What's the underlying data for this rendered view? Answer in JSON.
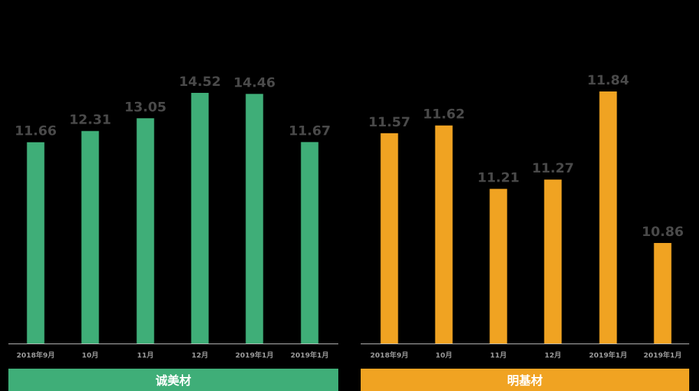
{
  "chart_data": [
    {
      "type": "bar",
      "title": "诚美材",
      "categories": [
        "2018年9月",
        "10月",
        "11月",
        "12月",
        "2019年1月",
        "2019年1月"
      ],
      "values": [
        11.66,
        12.31,
        13.05,
        14.52,
        14.46,
        11.67
      ],
      "color": "#3fae78",
      "ylim": [
        0,
        16
      ]
    },
    {
      "type": "bar",
      "title": "明基材",
      "categories": [
        "2018年9月",
        "10月",
        "11月",
        "12月",
        "2019年1月",
        "2019年1月"
      ],
      "values": [
        11.57,
        11.62,
        11.21,
        11.27,
        11.84,
        10.86
      ],
      "color": "#f0a322",
      "ylim": [
        9,
        12
      ]
    }
  ]
}
